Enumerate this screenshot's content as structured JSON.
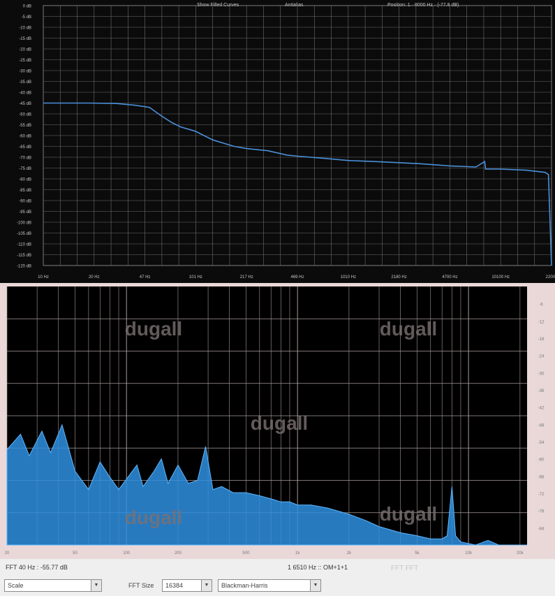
{
  "chart_data": [
    {
      "type": "line",
      "header": {
        "option1": "Show Filled Curves",
        "option2": "Antialias",
        "position": "Position: 1 · 8000 Hz · (-77.8 dB)"
      },
      "y_ticks": [
        "0 dB",
        "-5 dB",
        "-10 dB",
        "-15 dB",
        "-20 dB",
        "-25 dB",
        "-30 dB",
        "-35 dB",
        "-40 dB",
        "-45 dB",
        "-50 dB",
        "-55 dB",
        "-60 dB",
        "-65 dB",
        "-70 dB",
        "-75 dB",
        "-80 dB",
        "-85 dB",
        "-90 dB",
        "-95 dB",
        "-100 dB",
        "-105 dB",
        "-110 dB",
        "-115 dB",
        "-120 dB"
      ],
      "x_ticks": [
        "10 Hz",
        "20 Hz",
        "47 Hz",
        "101 Hz",
        "217 Hz",
        "469 Hz",
        "1010 Hz",
        "2180 Hz",
        "4700 Hz",
        "10100 Hz",
        "22000"
      ],
      "x_scale": "log",
      "ylim": [
        -120,
        0
      ],
      "xlim": [
        10,
        22000
      ],
      "grid": true,
      "series": [
        {
          "color": "#4a90d9",
          "points": [
            [
              10,
              -45
            ],
            [
              15,
              -45
            ],
            [
              20,
              -45
            ],
            [
              30,
              -45.2
            ],
            [
              40,
              -46
            ],
            [
              45,
              -46.5
            ],
            [
              50,
              -47
            ],
            [
              60,
              -51
            ],
            [
              70,
              -54
            ],
            [
              80,
              -56
            ],
            [
              100,
              -58
            ],
            [
              130,
              -62
            ],
            [
              180,
              -65
            ],
            [
              217,
              -66
            ],
            [
              300,
              -67
            ],
            [
              400,
              -69
            ],
            [
              469,
              -69.5
            ],
            [
              700,
              -70.5
            ],
            [
              1010,
              -71.5
            ],
            [
              1500,
              -72
            ],
            [
              2180,
              -72.5
            ],
            [
              3000,
              -73
            ],
            [
              4700,
              -74
            ],
            [
              7000,
              -74.5
            ],
            [
              8000,
              -72
            ],
            [
              8100,
              -75.5
            ],
            [
              10100,
              -75.5
            ],
            [
              15000,
              -76
            ],
            [
              20000,
              -77
            ],
            [
              21000,
              -78
            ],
            [
              22000,
              -120
            ]
          ]
        }
      ]
    },
    {
      "type": "area",
      "watermarks": [
        "dugall",
        "dugall",
        "dugall",
        "dugall",
        "dugall"
      ],
      "x_ticks": [
        "20",
        "50",
        "100",
        "200",
        "500",
        "1k",
        "2k",
        "5k",
        "10k",
        "20k"
      ],
      "y_ticks": [
        "-6",
        "-12",
        "-18",
        "-24",
        "-30",
        "-36",
        "-42",
        "-48",
        "-54",
        "-60",
        "-66",
        "-72",
        "-78",
        "-84"
      ],
      "x_scale": "log",
      "xlim": [
        20,
        22000
      ],
      "ylim": [
        -84,
        0
      ],
      "grid": true,
      "series": [
        {
          "color": "#2f8fe0",
          "points": [
            [
              20,
              -53
            ],
            [
              24,
              -48
            ],
            [
              27,
              -55
            ],
            [
              32,
              -47
            ],
            [
              36,
              -54
            ],
            [
              42,
              -45
            ],
            [
              50,
              -60
            ],
            [
              60,
              -66
            ],
            [
              70,
              -57
            ],
            [
              80,
              -62
            ],
            [
              90,
              -66
            ],
            [
              105,
              -61
            ],
            [
              115,
              -58
            ],
            [
              125,
              -65
            ],
            [
              145,
              -60
            ],
            [
              160,
              -56
            ],
            [
              175,
              -64
            ],
            [
              200,
              -58
            ],
            [
              230,
              -64
            ],
            [
              260,
              -63
            ],
            [
              290,
              -52
            ],
            [
              320,
              -66
            ],
            [
              360,
              -65
            ],
            [
              420,
              -67
            ],
            [
              500,
              -67
            ],
            [
              600,
              -68
            ],
            [
              700,
              -69
            ],
            [
              800,
              -70
            ],
            [
              900,
              -70
            ],
            [
              1000,
              -71
            ],
            [
              1200,
              -71
            ],
            [
              1500,
              -72
            ],
            [
              2000,
              -74
            ],
            [
              2500,
              -76
            ],
            [
              3000,
              -78
            ],
            [
              4000,
              -80
            ],
            [
              5000,
              -81
            ],
            [
              6000,
              -82
            ],
            [
              7000,
              -82
            ],
            [
              7500,
              -81
            ],
            [
              8000,
              -65
            ],
            [
              8400,
              -81
            ],
            [
              9000,
              -83
            ],
            [
              11000,
              -84
            ],
            [
              13000,
              -82.5
            ],
            [
              15000,
              -84
            ],
            [
              22000,
              -84
            ]
          ]
        }
      ]
    }
  ],
  "status": {
    "left_readout": "FFT 40 Hz : -55.77 dB",
    "right_readout": "1 6510 Hz :: OM+1+1",
    "hint_text": "FFT FFT"
  },
  "controls": {
    "mode_select": "Scale",
    "fft_size_label": "FFT Size",
    "fft_size_value": "16384",
    "window_select": "Blackman-Harris"
  },
  "colors": {
    "top_bg": "#0b0b0b",
    "grid": "#6e6e6e",
    "trace": "#4a90d9",
    "bottom_bg": "#000000",
    "bottom_grid": "#a89a9a",
    "spectrum": "#2f8fe0",
    "frame": "#ead8d8"
  }
}
